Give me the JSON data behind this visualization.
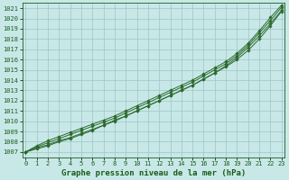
{
  "title": "Graphe pression niveau de la mer (hPa)",
  "xlabel_hours": [
    0,
    1,
    2,
    3,
    4,
    5,
    6,
    7,
    8,
    9,
    10,
    11,
    12,
    13,
    14,
    15,
    16,
    17,
    18,
    19,
    20,
    21,
    22,
    23
  ],
  "ylim": [
    1006.5,
    1021.5
  ],
  "xlim": [
    -0.3,
    23.3
  ],
  "yticks": [
    1007,
    1008,
    1009,
    1010,
    1011,
    1012,
    1013,
    1014,
    1015,
    1016,
    1017,
    1018,
    1019,
    1020,
    1021
  ],
  "line1": [
    1007.0,
    1007.4,
    1007.7,
    1008.1,
    1008.4,
    1008.8,
    1009.2,
    1009.6,
    1010.1,
    1010.5,
    1011.0,
    1011.5,
    1012.0,
    1012.5,
    1013.0,
    1013.5,
    1014.1,
    1014.7,
    1015.4,
    1016.2,
    1017.2,
    1018.3,
    1019.5,
    1020.8
  ],
  "line2": [
    1007.0,
    1007.3,
    1007.6,
    1008.0,
    1008.3,
    1008.7,
    1009.1,
    1009.6,
    1010.0,
    1010.5,
    1011.0,
    1011.5,
    1012.0,
    1012.5,
    1013.0,
    1013.5,
    1014.1,
    1014.7,
    1015.3,
    1016.0,
    1016.9,
    1018.0,
    1019.3,
    1020.7
  ],
  "line3": [
    1007.0,
    1007.5,
    1007.9,
    1008.3,
    1008.7,
    1009.1,
    1009.5,
    1009.9,
    1010.3,
    1010.8,
    1011.3,
    1011.8,
    1012.3,
    1012.8,
    1013.3,
    1013.8,
    1014.4,
    1015.0,
    1015.6,
    1016.4,
    1017.4,
    1018.6,
    1019.8,
    1021.1
  ],
  "line4": [
    1007.0,
    1007.6,
    1008.1,
    1008.5,
    1008.9,
    1009.3,
    1009.7,
    1010.1,
    1010.5,
    1011.0,
    1011.5,
    1012.0,
    1012.5,
    1013.0,
    1013.5,
    1014.0,
    1014.6,
    1015.2,
    1015.8,
    1016.6,
    1017.6,
    1018.8,
    1020.1,
    1021.3
  ],
  "line_color": "#2d6a2d",
  "bg_color": "#c8e8e8",
  "grid_color": "#9fc4c4",
  "title_color": "#1a5c1a",
  "tick_color": "#1a5c1a",
  "title_fontsize": 6.5,
  "tick_fontsize": 5.0
}
